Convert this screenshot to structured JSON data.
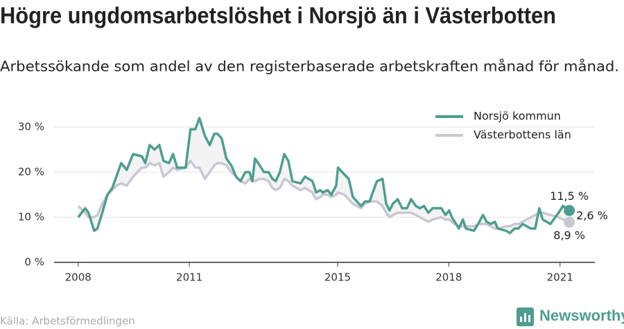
{
  "chart_data": {
    "type": "line",
    "title": "Högre ungdomsarbetslöshet i Norsjö än i Västerbotten",
    "subtitle": "Arbetssökande som andel av den registerbaserade arbetskraften månad för månad.",
    "source": "Källa: Arbetsförmedlingen",
    "brand": "Newsworthy",
    "annotations": [
      "2,6 %"
    ],
    "legend": "upper right",
    "grid": true,
    "xlim": [
      2007.35,
      2021.94
    ],
    "ylim": [
      0,
      35
    ],
    "xticks": [
      2008,
      2011,
      2015,
      2018,
      2021
    ],
    "yticks": [
      {
        "value": 0,
        "label": "0 %"
      },
      {
        "value": 10,
        "label": "10 %"
      },
      {
        "value": 20,
        "label": "20 %"
      },
      {
        "value": 30,
        "label": "30 %"
      }
    ],
    "x": [
      2008.0,
      2008.19,
      2008.28,
      2008.43,
      2008.52,
      2008.65,
      2008.79,
      2008.92,
      2009.03,
      2009.16,
      2009.31,
      2009.48,
      2009.72,
      2009.81,
      2009.93,
      2010.06,
      2010.19,
      2010.3,
      2010.45,
      2010.56,
      2010.67,
      2010.9,
      2011.03,
      2011.16,
      2011.27,
      2011.42,
      2011.55,
      2011.67,
      2011.76,
      2011.87,
      2012.0,
      2012.13,
      2012.26,
      2012.38,
      2012.51,
      2012.62,
      2012.7,
      2012.77,
      2012.9,
      2013.01,
      2013.14,
      2013.24,
      2013.33,
      2013.44,
      2013.56,
      2013.67,
      2013.78,
      2014.0,
      2014.12,
      2014.32,
      2014.42,
      2014.53,
      2014.6,
      2014.73,
      2014.83,
      2014.96,
      2015.01,
      2015.18,
      2015.3,
      2015.41,
      2015.63,
      2015.74,
      2015.86,
      2015.97,
      2016.06,
      2016.21,
      2016.31,
      2016.4,
      2016.49,
      2016.62,
      2016.74,
      2016.87,
      2016.98,
      2017.11,
      2017.22,
      2017.33,
      2017.45,
      2017.56,
      2017.8,
      2017.91,
      2018.01,
      2018.08,
      2018.16,
      2018.27,
      2018.38,
      2018.46,
      2018.68,
      2018.79,
      2018.92,
      2019.02,
      2019.13,
      2019.24,
      2019.32,
      2019.54,
      2019.65,
      2019.77,
      2019.88,
      2019.99,
      2020.21,
      2020.33,
      2020.44,
      2020.53,
      2020.74,
      2020.96,
      2021.08,
      2021.25
    ],
    "series": [
      {
        "name": "Norsjö kommun",
        "color": "#4e9e8f",
        "values": [
          10,
          12,
          11,
          7,
          7.5,
          11,
          15,
          16.5,
          19,
          22,
          20.5,
          24,
          23.5,
          22,
          26,
          25,
          26,
          22.5,
          22,
          24,
          21,
          21,
          29.5,
          29.5,
          32,
          28,
          26,
          28.5,
          28.5,
          27.5,
          23,
          21.5,
          19,
          18,
          20,
          20,
          18,
          23,
          21.5,
          20,
          20,
          18.5,
          18,
          20,
          24,
          22.5,
          18,
          17.5,
          19,
          18,
          15.5,
          16,
          15.5,
          16,
          15,
          17,
          21,
          19.5,
          18.5,
          14.5,
          12.5,
          13.5,
          13.5,
          16,
          18,
          18.5,
          13,
          11.5,
          13,
          14,
          12,
          12,
          14,
          12.5,
          12,
          12.5,
          11,
          12,
          12,
          10.5,
          11.5,
          10,
          9,
          7.5,
          9.5,
          7.5,
          7,
          8.5,
          10.5,
          9,
          8.5,
          9,
          7.5,
          7,
          6.5,
          7.5,
          7.5,
          8.5,
          7.5,
          7.5,
          12,
          9.5,
          8.5,
          11,
          12.5,
          11.5
        ],
        "value_labels": [
          null,
          null,
          null,
          null,
          null,
          null,
          null,
          null,
          null,
          null,
          null,
          null,
          null,
          null,
          null,
          null,
          null,
          null,
          null,
          null,
          null,
          null,
          null,
          null,
          null,
          null,
          null,
          null,
          null,
          null,
          null,
          null,
          null,
          null,
          null,
          null,
          null,
          null,
          null,
          null,
          null,
          null,
          null,
          null,
          null,
          null,
          null,
          null,
          null,
          null,
          null,
          null,
          null,
          null,
          null,
          null,
          null,
          null,
          null,
          null,
          null,
          null,
          null,
          null,
          null,
          null,
          null,
          null,
          null,
          null,
          null,
          null,
          null,
          null,
          null,
          null,
          null,
          null,
          null,
          null,
          null,
          null,
          null,
          null,
          null,
          null,
          null,
          null,
          null,
          null,
          null,
          null,
          null,
          null,
          null,
          null,
          null,
          null,
          null,
          null,
          null,
          null,
          null,
          null,
          null,
          "11,5 %"
        ]
      },
      {
        "name": "Västerbottens län",
        "color": "#c9c7d1",
        "values": [
          12.5,
          11,
          10,
          10,
          10.5,
          13,
          15,
          16,
          17,
          17.5,
          17,
          19,
          21,
          21,
          22,
          21.5,
          22,
          19,
          20,
          21,
          20.5,
          21,
          22.5,
          21,
          21,
          18.5,
          20,
          21.5,
          22,
          22,
          21.5,
          20,
          19,
          18,
          17.5,
          18.5,
          18,
          18,
          18.5,
          18.5,
          18,
          16.5,
          16,
          16.5,
          18.5,
          18,
          17,
          16,
          16.5,
          15.5,
          14,
          14.5,
          15,
          15,
          14.5,
          15,
          15.5,
          15,
          14,
          13,
          12,
          13,
          13.5,
          13.5,
          13.5,
          12.5,
          11,
          10,
          10.5,
          11,
          11,
          11,
          11,
          10.5,
          10,
          9.5,
          9,
          9.5,
          10,
          9.5,
          9.5,
          9,
          8.5,
          8,
          8,
          8,
          8,
          8.5,
          8.5,
          8.5,
          8,
          7.5,
          7.5,
          8,
          8,
          8.5,
          8.5,
          9,
          10,
          10.5,
          11,
          11,
          10.5,
          10,
          9.5,
          8.9
        ],
        "value_labels": [
          null,
          null,
          null,
          null,
          null,
          null,
          null,
          null,
          null,
          null,
          null,
          null,
          null,
          null,
          null,
          null,
          null,
          null,
          null,
          null,
          null,
          null,
          null,
          null,
          null,
          null,
          null,
          null,
          null,
          null,
          null,
          null,
          null,
          null,
          null,
          null,
          null,
          null,
          null,
          null,
          null,
          null,
          null,
          null,
          null,
          null,
          null,
          null,
          null,
          null,
          null,
          null,
          null,
          null,
          null,
          null,
          null,
          null,
          null,
          null,
          null,
          null,
          null,
          null,
          null,
          null,
          null,
          null,
          null,
          null,
          null,
          null,
          null,
          null,
          null,
          null,
          null,
          null,
          null,
          null,
          null,
          null,
          null,
          null,
          null,
          null,
          null,
          null,
          null,
          null,
          null,
          null,
          null,
          null,
          null,
          null,
          null,
          null,
          null,
          null,
          null,
          null,
          null,
          null,
          null,
          "8,9 %"
        ]
      }
    ]
  }
}
